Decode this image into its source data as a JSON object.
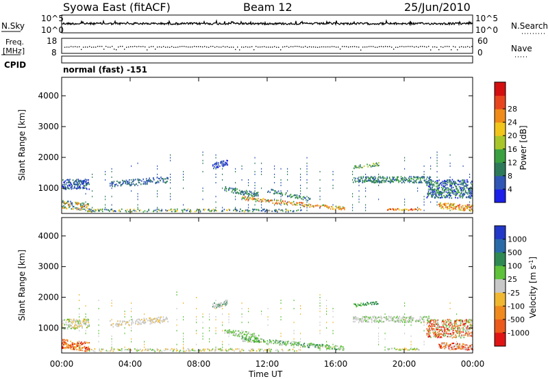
{
  "header": {
    "title": "Syowa East (fitACF)",
    "beam": "Beam 12",
    "date": "25/Jun/2010"
  },
  "top_panels": {
    "nsky_label": "N.Sky",
    "nsearch_label": "N.Search",
    "log_top": "10^5",
    "log_bottom": "10^0",
    "freq_label_1": "Freq.",
    "freq_label_2": "[MHz]",
    "freq_ticks": [
      "18",
      "8"
    ],
    "nave_label": "Nave",
    "nave_ticks": [
      "60",
      "0"
    ],
    "cpid_label": "CPID",
    "cpid_value": "normal (fast) -151"
  },
  "chart_data": [
    {
      "type": "heatmap",
      "name": "power",
      "ylabel": "Slant Range [km]",
      "xlabel": "Time UT",
      "x_ticks": [
        "00:00",
        "04:00",
        "08:00",
        "12:00",
        "16:00",
        "20:00",
        "00:00"
      ],
      "xlim_hours": [
        0,
        24
      ],
      "y_ticks": [
        1000,
        2000,
        3000,
        4000
      ],
      "ylim": [
        180,
        4600
      ],
      "colorbar": {
        "label": "Power [dB]",
        "ticks": [
          "4",
          "8",
          "12",
          "16",
          "20",
          "24",
          "28"
        ],
        "colors": [
          "#1c20e8",
          "#2f56b4",
          "#2d7a5a",
          "#3aa040",
          "#a8c62a",
          "#f2c51a",
          "#f08a18",
          "#e8451e",
          "#d40f10"
        ]
      }
    },
    {
      "type": "heatmap",
      "name": "velocity",
      "ylabel": "Slant Range [km]",
      "xlabel": "Time UT",
      "x_ticks": [
        "00:00",
        "04:00",
        "08:00",
        "12:00",
        "16:00",
        "20:00",
        "00:00"
      ],
      "xlim_hours": [
        0,
        24
      ],
      "y_ticks": [
        1000,
        2000,
        3000,
        4000
      ],
      "ylim": [
        180,
        4600
      ],
      "colorbar": {
        "label": "Velocity [m s^-1]",
        "ticks": [
          "1000",
          "500",
          "100",
          "25",
          "-25",
          "-100",
          "-500",
          "-1000"
        ],
        "colors": [
          "#2238c8",
          "#2a6aa8",
          "#2e8a52",
          "#5ec23a",
          "#c8c8c8",
          "#f0b830",
          "#f08a1e",
          "#ec5a1c",
          "#e01414"
        ]
      }
    }
  ]
}
